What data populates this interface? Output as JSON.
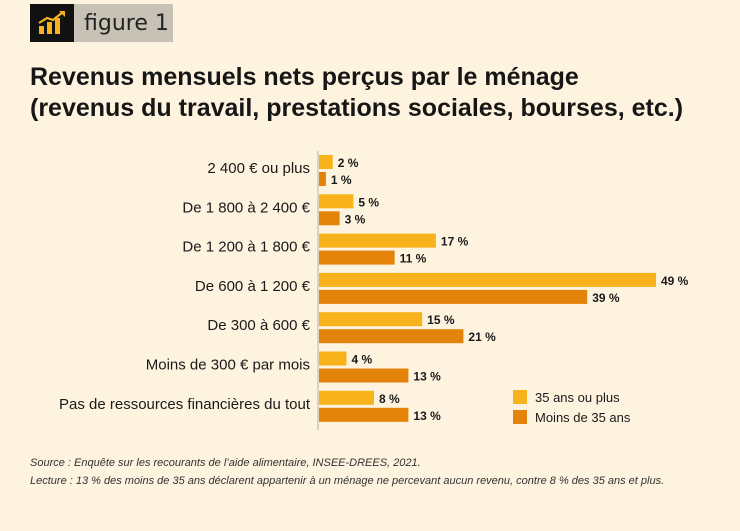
{
  "figure_tag": {
    "label": "figure 1",
    "icon": "bar-chart-trend-icon"
  },
  "title_lines": [
    "Revenus mensuels nets perçus par le ménage",
    "(revenus du travail, prestations sociales, bourses, etc.)"
  ],
  "colors": {
    "series_35_plus": "#f7b21c",
    "series_under_35": "#e3830a",
    "background": "#fdf3de"
  },
  "chart_data": {
    "type": "bar",
    "orientation": "horizontal",
    "categories": [
      "2 400 € ou plus",
      "De 1 800 à 2 400 €",
      "De 1 200 à 1 800 €",
      "De 600 à 1 200 €",
      "De 300 à 600 €",
      "Moins de 300 € par mois",
      "Pas de ressources financières du tout"
    ],
    "series": [
      {
        "name": "35 ans ou plus",
        "values": [
          2,
          5,
          17,
          49,
          15,
          4,
          8
        ],
        "labels": [
          "2 %",
          "5 %",
          "17 %",
          "49 %",
          "15 %",
          "4 %",
          "8 %"
        ]
      },
      {
        "name": "Moins de 35 ans",
        "values": [
          1,
          3,
          11,
          39,
          21,
          13,
          13
        ],
        "labels": [
          "1 %",
          "3 %",
          "11 %",
          "39 %",
          "21 %",
          "13 %",
          "13 %"
        ]
      }
    ],
    "legend_position": "bottom-right",
    "grid": false
  },
  "notes": {
    "source": "Source : Enquête sur les recourants de l’aide alimentaire, INSEE-DREES, 2021.",
    "lecture": "Lecture : 13 % des moins de 35 ans déclarent appartenir à un ménage ne percevant aucun revenu, contre 8 % des 35 ans et plus."
  }
}
